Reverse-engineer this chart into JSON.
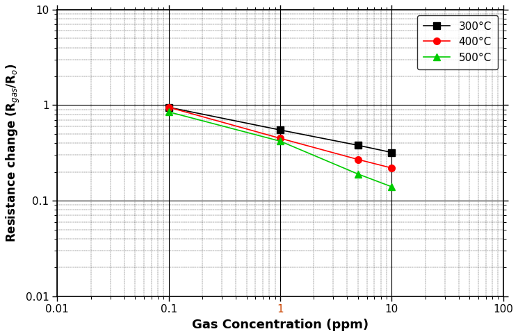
{
  "series": [
    {
      "label": "300°C",
      "x": [
        0.1,
        1.0,
        5.0,
        10.0
      ],
      "y": [
        0.95,
        0.55,
        0.38,
        0.32
      ],
      "color": "#000000",
      "marker": "s",
      "markersize": 7,
      "linestyle": "-"
    },
    {
      "label": "400°C",
      "x": [
        0.1,
        1.0,
        5.0,
        10.0
      ],
      "y": [
        0.95,
        0.45,
        0.27,
        0.22
      ],
      "color": "#ff0000",
      "marker": "o",
      "markersize": 7,
      "linestyle": "-"
    },
    {
      "label": "500°C",
      "x": [
        0.1,
        1.0,
        5.0,
        10.0
      ],
      "y": [
        0.85,
        0.42,
        0.19,
        0.14
      ],
      "color": "#00cc00",
      "marker": "^",
      "markersize": 7,
      "linestyle": "-"
    }
  ],
  "xlabel": "Gas Concentration (ppm)",
  "ylabel": "Resistance change (R$_{gas}$/R$_o$)",
  "xlim": [
    0.01,
    100
  ],
  "ylim": [
    0.01,
    10
  ],
  "xticks": [
    0.01,
    0.1,
    1,
    10,
    100
  ],
  "yticks": [
    0.01,
    0.1,
    1,
    10
  ],
  "xtick_labels": [
    "0.01",
    "0.1",
    "1",
    "10",
    "100"
  ],
  "ytick_labels": [
    "0.01",
    "0.1",
    "1",
    "10"
  ],
  "x_color_1_red": true,
  "background_color": "#ffffff",
  "major_grid_color": "#000000",
  "minor_grid_color": "#000000",
  "legend_loc": "upper right",
  "xlabel_fontsize": 13,
  "ylabel_fontsize": 12,
  "tick_fontsize": 11,
  "legend_fontsize": 11,
  "linewidth": 1.2,
  "major_grid_lw": 0.8,
  "minor_grid_lw": 0.35
}
